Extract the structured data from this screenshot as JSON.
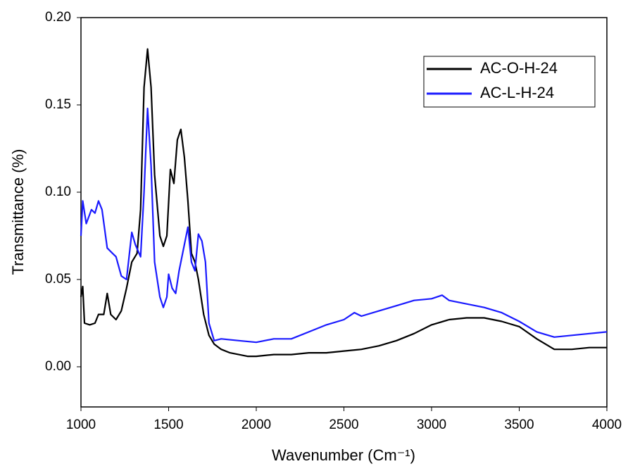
{
  "chart_data": {
    "type": "line",
    "x_label": "Wavenumber (Cm⁻¹)",
    "y_label": "Transmittance (%)",
    "xlim": [
      1000,
      4000
    ],
    "xticks": [
      1000,
      1500,
      2000,
      2500,
      3000,
      3500,
      4000
    ],
    "ylim": [
      -0.023,
      0.2
    ],
    "yticks": [
      {
        "value": 0,
        "label": "0.00"
      },
      {
        "value": 0.05,
        "label": "0.05"
      },
      {
        "value": 0.1,
        "label": "0.10"
      },
      {
        "value": 0.15,
        "label": "0.15"
      },
      {
        "value": 0.2,
        "label": "0.20"
      }
    ],
    "legend": "top-right",
    "series": [
      {
        "name": "AC-O-H-24",
        "color": "#000000",
        "x": [
          1000,
          1010,
          1020,
          1050,
          1080,
          1100,
          1130,
          1150,
          1170,
          1200,
          1230,
          1260,
          1290,
          1320,
          1340,
          1360,
          1380,
          1400,
          1420,
          1450,
          1470,
          1490,
          1510,
          1530,
          1550,
          1570,
          1590,
          1610,
          1630,
          1650,
          1670,
          1700,
          1730,
          1760,
          1800,
          1850,
          1900,
          1950,
          2000,
          2100,
          2200,
          2300,
          2400,
          2500,
          2600,
          2700,
          2800,
          2900,
          3000,
          3100,
          3200,
          3300,
          3400,
          3500,
          3600,
          3700,
          3800,
          3900,
          4000
        ],
        "values": [
          0.04,
          0.046,
          0.025,
          0.024,
          0.025,
          0.03,
          0.03,
          0.042,
          0.03,
          0.027,
          0.032,
          0.045,
          0.06,
          0.065,
          0.09,
          0.16,
          0.182,
          0.16,
          0.11,
          0.075,
          0.069,
          0.075,
          0.113,
          0.105,
          0.13,
          0.136,
          0.12,
          0.095,
          0.065,
          0.06,
          0.05,
          0.03,
          0.018,
          0.013,
          0.01,
          0.008,
          0.007,
          0.006,
          0.006,
          0.007,
          0.007,
          0.008,
          0.008,
          0.009,
          0.01,
          0.012,
          0.015,
          0.019,
          0.024,
          0.027,
          0.028,
          0.028,
          0.026,
          0.023,
          0.016,
          0.01,
          0.01,
          0.011,
          0.011
        ]
      },
      {
        "name": "AC-L-H-24",
        "color": "#1a1aff",
        "x": [
          1000,
          1010,
          1030,
          1060,
          1080,
          1100,
          1120,
          1150,
          1180,
          1200,
          1230,
          1260,
          1290,
          1310,
          1340,
          1360,
          1380,
          1400,
          1420,
          1450,
          1470,
          1490,
          1500,
          1520,
          1540,
          1560,
          1590,
          1610,
          1630,
          1650,
          1670,
          1690,
          1710,
          1730,
          1760,
          1800,
          1900,
          2000,
          2100,
          2200,
          2300,
          2400,
          2500,
          2560,
          2600,
          2700,
          2800,
          2900,
          3000,
          3060,
          3100,
          3200,
          3300,
          3400,
          3500,
          3600,
          3700,
          3800,
          3900,
          4000
        ],
        "values": [
          0.075,
          0.095,
          0.082,
          0.09,
          0.088,
          0.095,
          0.09,
          0.068,
          0.065,
          0.063,
          0.052,
          0.05,
          0.077,
          0.07,
          0.063,
          0.1,
          0.148,
          0.115,
          0.06,
          0.04,
          0.034,
          0.04,
          0.053,
          0.045,
          0.042,
          0.055,
          0.07,
          0.08,
          0.06,
          0.055,
          0.076,
          0.072,
          0.06,
          0.025,
          0.015,
          0.016,
          0.015,
          0.014,
          0.016,
          0.016,
          0.02,
          0.024,
          0.027,
          0.031,
          0.029,
          0.032,
          0.035,
          0.038,
          0.039,
          0.041,
          0.038,
          0.036,
          0.034,
          0.031,
          0.026,
          0.02,
          0.017,
          0.018,
          0.019,
          0.02
        ]
      }
    ]
  }
}
